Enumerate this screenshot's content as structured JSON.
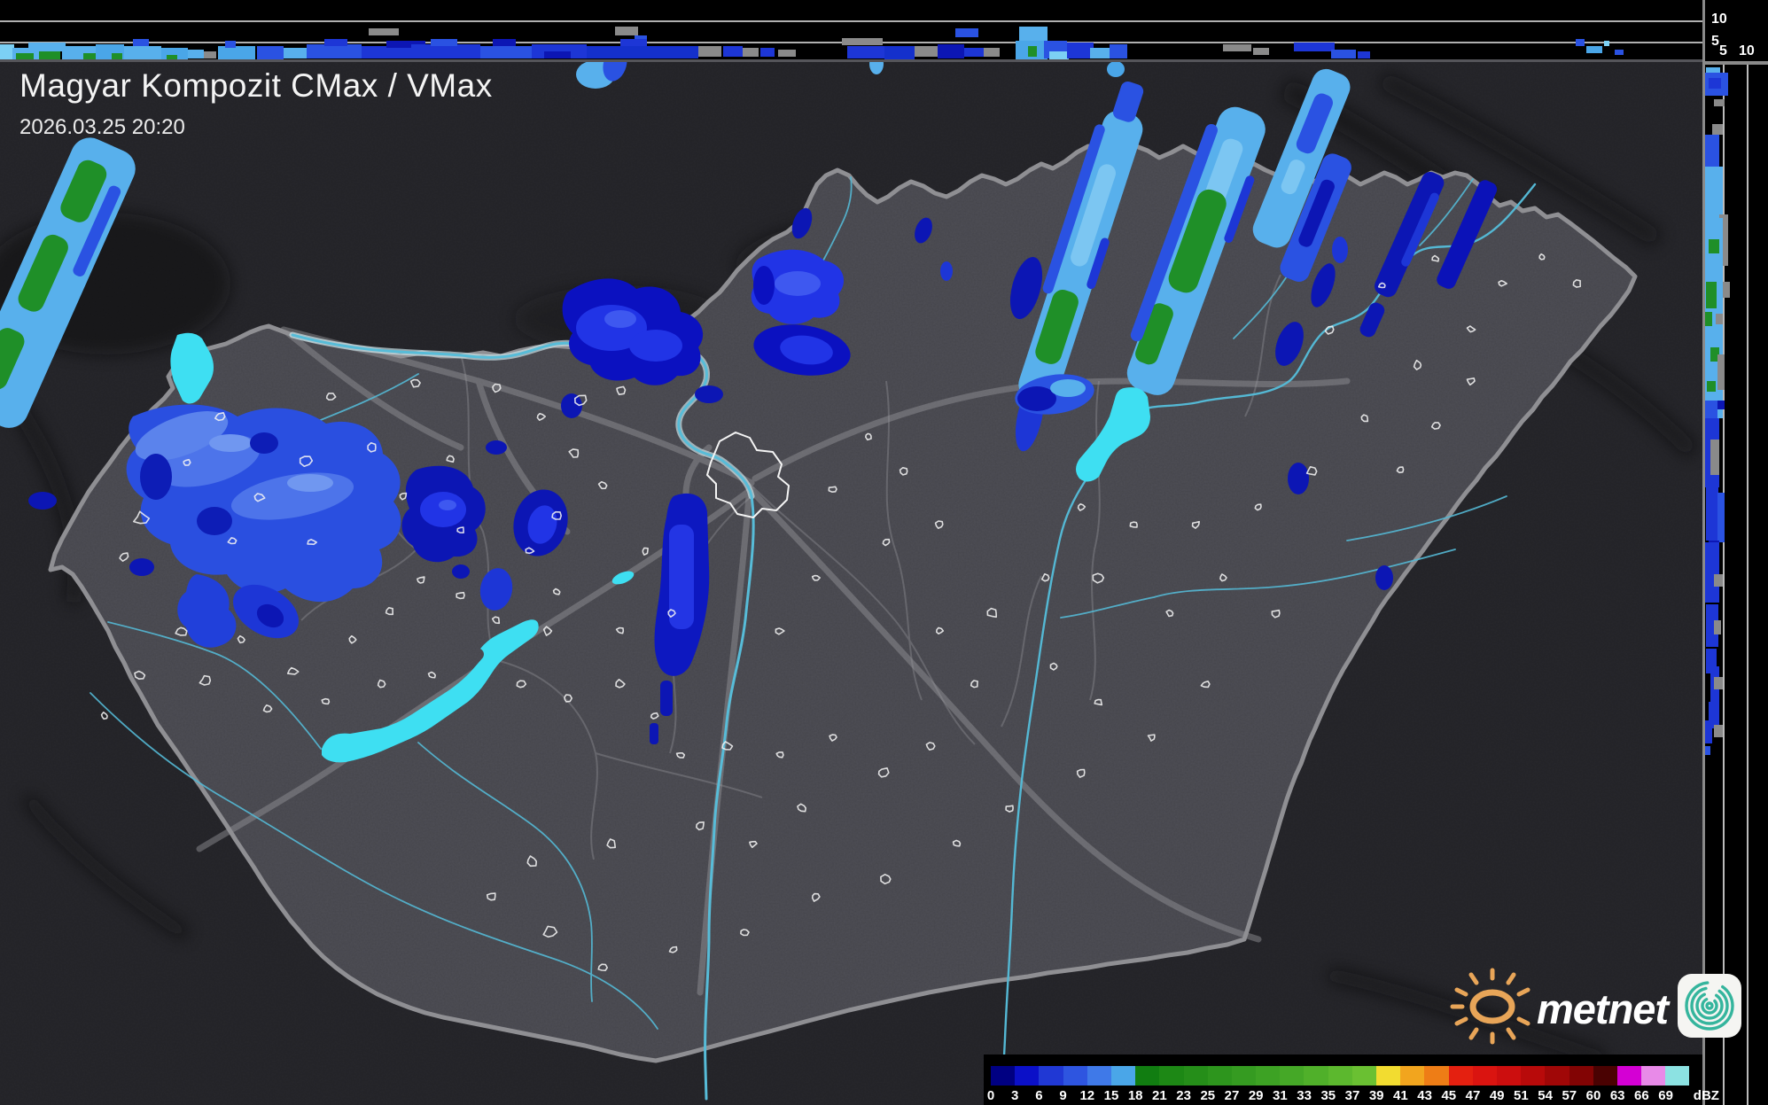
{
  "header": {
    "title": "Magyar Kompozit CMax / VMax",
    "datetime": "2026.03.25 20:20"
  },
  "profile_axes": {
    "top_10": "10",
    "top_5": "5",
    "right_5": "5",
    "right_10": "10"
  },
  "legend": {
    "unit": "dBZ",
    "values": [
      "0",
      "3",
      "6",
      "9",
      "12",
      "15",
      "18",
      "21",
      "23",
      "25",
      "27",
      "29",
      "31",
      "33",
      "35",
      "37",
      "39",
      "41",
      "43",
      "45",
      "47",
      "49",
      "51",
      "54",
      "57",
      "60",
      "63",
      "66",
      "69"
    ],
    "colors": [
      "#000082",
      "#0b10c8",
      "#2038d4",
      "#2e55e0",
      "#3f79e8",
      "#4aa6e8",
      "#117d11",
      "#1d8815",
      "#258e19",
      "#2d951d",
      "#359b21",
      "#3da224",
      "#45a827",
      "#50b02a",
      "#5cb82e",
      "#6ac032",
      "#f2dc30",
      "#f2a51e",
      "#ee7d16",
      "#e42010",
      "#da1410",
      "#cc0e0e",
      "#b80a0a",
      "#a00707",
      "#820404",
      "#4a0202",
      "#d400d4",
      "#e88ae8",
      "#8ce2e2"
    ]
  },
  "logo": {
    "brand": "metnet"
  },
  "palette": {
    "echo_navy": "#0c16b4",
    "echo_blue": "#1d36d6",
    "echo_mid": "#2a52e2",
    "echo_sky": "#58b0ec",
    "echo_pale": "#7cc6f2",
    "echo_green": "#1f8f28",
    "clutter_gray": "#8a8a8a",
    "lake_cyan": "#3edff2",
    "river_cyan": "#54b8d4",
    "border_gray": "#8f8f93"
  }
}
